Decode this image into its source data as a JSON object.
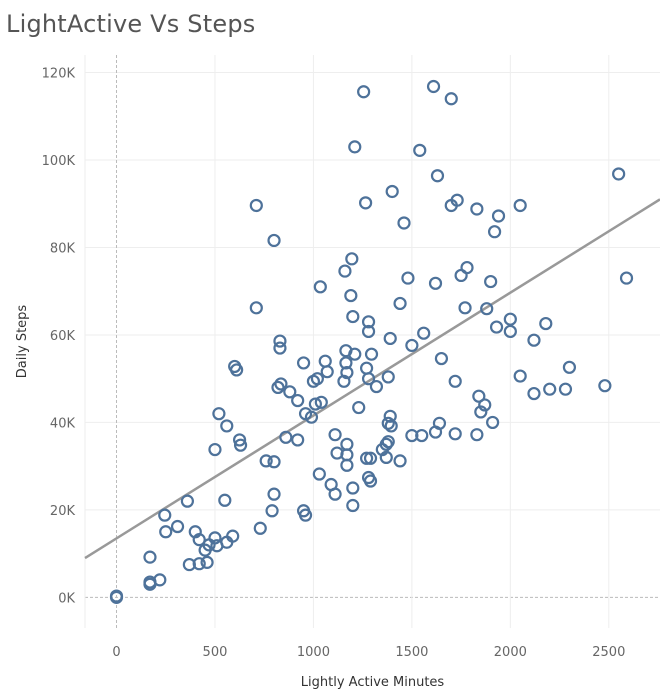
{
  "chart_data": {
    "type": "scatter",
    "title": "LightActive Vs Steps",
    "xlabel": "Lightly Active Minutes",
    "ylabel": "Daily Steps",
    "xlim": [
      -160,
      2760
    ],
    "ylim": [
      -7000,
      124000
    ],
    "xticks": [
      0,
      500,
      1000,
      1500,
      2000,
      2500
    ],
    "xtick_labels": [
      "0",
      "500",
      "1000",
      "1500",
      "2000",
      "2500"
    ],
    "yticks": [
      0,
      20000,
      40000,
      60000,
      80000,
      100000,
      120000
    ],
    "ytick_labels": [
      "0K",
      "20K",
      "40K",
      "60K",
      "80K",
      "100K",
      "120K"
    ],
    "grid": true,
    "trend_line": {
      "x": [
        -160,
        2760
      ],
      "y": [
        9000,
        91000
      ]
    },
    "colors": {
      "marker": "#4e729a",
      "trend": "#999999",
      "grid": "#eeeeee",
      "zero_line": "#bbbbbb"
    },
    "points": [
      [
        0,
        0
      ],
      [
        0,
        300
      ],
      [
        170,
        3000
      ],
      [
        170,
        3500
      ],
      [
        220,
        4000
      ],
      [
        170,
        9200
      ],
      [
        250,
        15000
      ],
      [
        245,
        18800
      ],
      [
        310,
        16200
      ],
      [
        360,
        22000
      ],
      [
        370,
        7500
      ],
      [
        420,
        7700
      ],
      [
        400,
        15000
      ],
      [
        420,
        13200
      ],
      [
        460,
        8000
      ],
      [
        450,
        10800
      ],
      [
        470,
        12000
      ],
      [
        510,
        11800
      ],
      [
        500,
        13600
      ],
      [
        560,
        12600
      ],
      [
        590,
        14000
      ],
      [
        550,
        22200
      ],
      [
        500,
        33800
      ],
      [
        520,
        42000
      ],
      [
        560,
        39200
      ],
      [
        625,
        36000
      ],
      [
        630,
        34800
      ],
      [
        600,
        52800
      ],
      [
        610,
        52000
      ],
      [
        710,
        66200
      ],
      [
        710,
        89600
      ],
      [
        800,
        81600
      ],
      [
        730,
        15800
      ],
      [
        790,
        19800
      ],
      [
        800,
        23600
      ],
      [
        760,
        31200
      ],
      [
        800,
        31000
      ],
      [
        820,
        48000
      ],
      [
        835,
        48800
      ],
      [
        880,
        47000
      ],
      [
        830,
        58600
      ],
      [
        830,
        57000
      ],
      [
        860,
        36600
      ],
      [
        920,
        36000
      ],
      [
        920,
        45000
      ],
      [
        950,
        53600
      ],
      [
        960,
        42000
      ],
      [
        990,
        41200
      ],
      [
        1000,
        49400
      ],
      [
        1020,
        50000
      ],
      [
        1010,
        44200
      ],
      [
        1040,
        44600
      ],
      [
        1035,
        71000
      ],
      [
        1060,
        54000
      ],
      [
        1070,
        51600
      ],
      [
        950,
        19800
      ],
      [
        960,
        18800
      ],
      [
        1030,
        28200
      ],
      [
        1090,
        25800
      ],
      [
        1110,
        23600
      ],
      [
        1110,
        37200
      ],
      [
        1120,
        33000
      ],
      [
        1155,
        49400
      ],
      [
        1170,
        51400
      ],
      [
        1165,
        53600
      ],
      [
        1165,
        56400
      ],
      [
        1160,
        74600
      ],
      [
        1190,
        69000
      ],
      [
        1195,
        77400
      ],
      [
        1200,
        64200
      ],
      [
        1210,
        103000
      ],
      [
        1210,
        55600
      ],
      [
        1170,
        35000
      ],
      [
        1170,
        32600
      ],
      [
        1170,
        30200
      ],
      [
        1200,
        21000
      ],
      [
        1200,
        25000
      ],
      [
        1230,
        43400
      ],
      [
        1255,
        115600
      ],
      [
        1265,
        90200
      ],
      [
        1270,
        52400
      ],
      [
        1280,
        50000
      ],
      [
        1280,
        60800
      ],
      [
        1280,
        63000
      ],
      [
        1295,
        55600
      ],
      [
        1270,
        31800
      ],
      [
        1290,
        31800
      ],
      [
        1280,
        27400
      ],
      [
        1290,
        26600
      ],
      [
        1320,
        48200
      ],
      [
        1350,
        33800
      ],
      [
        1370,
        35000
      ],
      [
        1370,
        32000
      ],
      [
        1380,
        50400
      ],
      [
        1390,
        59200
      ],
      [
        1380,
        39800
      ],
      [
        1390,
        41400
      ],
      [
        1380,
        35600
      ],
      [
        1395,
        39200
      ],
      [
        1400,
        92800
      ],
      [
        1440,
        67200
      ],
      [
        1460,
        85600
      ],
      [
        1440,
        31200
      ],
      [
        1480,
        73000
      ],
      [
        1500,
        57600
      ],
      [
        1500,
        37000
      ],
      [
        1540,
        102200
      ],
      [
        1560,
        60400
      ],
      [
        1550,
        37000
      ],
      [
        1620,
        37800
      ],
      [
        1640,
        39800
      ],
      [
        1610,
        116800
      ],
      [
        1630,
        96400
      ],
      [
        1620,
        71800
      ],
      [
        1650,
        54600
      ],
      [
        1700,
        114000
      ],
      [
        1700,
        89600
      ],
      [
        1730,
        90800
      ],
      [
        1720,
        49400
      ],
      [
        1720,
        37400
      ],
      [
        1750,
        73600
      ],
      [
        1770,
        66200
      ],
      [
        1780,
        75400
      ],
      [
        1830,
        37200
      ],
      [
        1830,
        88800
      ],
      [
        1840,
        46000
      ],
      [
        1850,
        42400
      ],
      [
        1870,
        44000
      ],
      [
        1880,
        66000
      ],
      [
        1900,
        72200
      ],
      [
        1910,
        40000
      ],
      [
        1920,
        83600
      ],
      [
        1940,
        87200
      ],
      [
        1930,
        61800
      ],
      [
        2000,
        63600
      ],
      [
        2000,
        60800
      ],
      [
        2050,
        89600
      ],
      [
        2050,
        50600
      ],
      [
        2120,
        46600
      ],
      [
        2120,
        58800
      ],
      [
        2180,
        62600
      ],
      [
        2200,
        47600
      ],
      [
        2280,
        47600
      ],
      [
        2300,
        52600
      ],
      [
        2480,
        48400
      ],
      [
        2550,
        96800
      ],
      [
        2590,
        73000
      ]
    ]
  }
}
